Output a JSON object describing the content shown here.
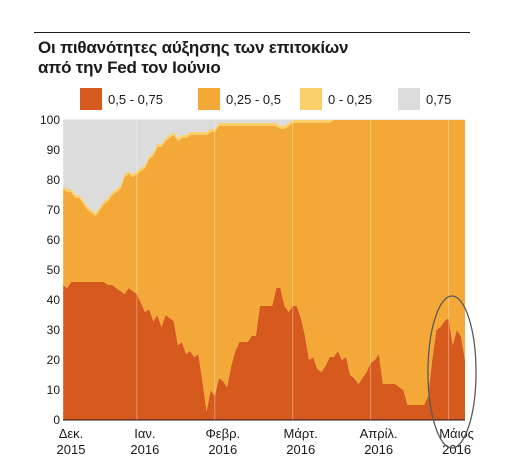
{
  "colors": {
    "s1": "#d65a1d",
    "s2": "#f4a838",
    "s3": "#fbcf6a",
    "s4": "#dcdcdc",
    "grid": "#d9d9d9",
    "text": "#1a1a1a"
  },
  "chart_data": {
    "type": "area",
    "stacked": true,
    "title": "Οι πιθανότητες αύξησης των επιτοκίων\nαπό την Fed τον Ιούνιο",
    "title_lines": [
      "Οι πιθανότητες αύξησης των επιτοκίων",
      "από την Fed τον Ιούνιο"
    ],
    "xlabel": "",
    "ylabel": "",
    "ylim": [
      0,
      100
    ],
    "yticks": [
      0,
      10,
      20,
      30,
      40,
      50,
      60,
      70,
      80,
      90,
      100
    ],
    "grid": true,
    "legend_position": "top",
    "x_ticks": [
      {
        "label": [
          "Δεκ.",
          "2015"
        ],
        "at": 0
      },
      {
        "label": [
          "Ιαν.",
          "2016"
        ],
        "at": 18
      },
      {
        "label": [
          "Φεβρ.",
          "2016"
        ],
        "at": 37
      },
      {
        "label": [
          "Μάρτ.",
          "2016"
        ],
        "at": 56
      },
      {
        "label": [
          "Απρίλ.",
          "2016"
        ],
        "at": 75
      },
      {
        "label": [
          "Μάιος",
          "2016"
        ],
        "at": 94
      }
    ],
    "series": [
      {
        "name": "0,5 - 0,75",
        "values": [
          45,
          44,
          46,
          46,
          46,
          46,
          46,
          46,
          46,
          46,
          46,
          45,
          45,
          44,
          43,
          42,
          44,
          43,
          42,
          39,
          36,
          37,
          33,
          35,
          31,
          35,
          34,
          33,
          25,
          26,
          22,
          23,
          21,
          22,
          13,
          3,
          10,
          8,
          14,
          13,
          11,
          18,
          23,
          26,
          26,
          26,
          28,
          28,
          38,
          38,
          38,
          38,
          44,
          44,
          38,
          36,
          38,
          38,
          34,
          28,
          20,
          21,
          17,
          16,
          18,
          21,
          21,
          23,
          20,
          21,
          15,
          14,
          12,
          14,
          16,
          19,
          20,
          22,
          12,
          12,
          12,
          12,
          11,
          10,
          5,
          5,
          5,
          5,
          5,
          8,
          20,
          30,
          31,
          33,
          34,
          25,
          30,
          28,
          20
        ]
      },
      {
        "name": "0,25 - 0,5",
        "values": [
          32,
          32,
          30,
          28,
          28,
          26,
          24,
          23,
          22,
          24,
          26,
          28,
          30,
          32,
          34,
          39,
          38,
          38,
          40,
          44,
          48,
          50,
          55,
          56,
          60,
          58,
          60,
          62,
          68,
          68,
          72,
          72,
          74,
          73,
          82,
          92,
          86,
          88,
          84,
          85,
          87,
          80,
          75,
          72,
          72,
          72,
          70,
          70,
          60,
          60,
          60,
          60,
          54,
          53,
          59,
          62,
          61,
          61,
          65,
          71,
          79,
          78,
          82,
          83,
          81,
          78,
          79,
          77,
          80,
          79,
          85,
          86,
          88,
          86,
          84,
          81,
          80,
          78,
          88,
          88,
          88,
          88,
          89,
          90,
          95,
          95,
          95,
          95,
          95,
          92,
          80,
          70,
          69,
          67,
          66,
          75,
          70,
          72,
          80
        ]
      },
      {
        "name": "0 - 0,25",
        "values": [
          1,
          1,
          1,
          1,
          1,
          1,
          1,
          1,
          1,
          1,
          1,
          1,
          1,
          1,
          1,
          1,
          1,
          1,
          1,
          1,
          1,
          1,
          1,
          1,
          1,
          1,
          1,
          1,
          1,
          1,
          1,
          1,
          1,
          1,
          1,
          1,
          1,
          1,
          1,
          1,
          1,
          1,
          1,
          1,
          1,
          1,
          1,
          1,
          1,
          1,
          1,
          1,
          1,
          1,
          1,
          1,
          1,
          1,
          1,
          1,
          1,
          1,
          1,
          1,
          1,
          1,
          1,
          1,
          1,
          1,
          1,
          1,
          1,
          1,
          1,
          1,
          1,
          1,
          1,
          1,
          1,
          1,
          1,
          1,
          0,
          0,
          0,
          0,
          0,
          0,
          0,
          0,
          0,
          0,
          0,
          0,
          0,
          0,
          0
        ]
      },
      {
        "name": "0,75",
        "values": [
          22,
          23,
          23,
          25,
          25,
          27,
          29,
          30,
          31,
          29,
          27,
          26,
          24,
          23,
          22,
          18,
          17,
          18,
          17,
          16,
          15,
          12,
          11,
          8,
          8,
          6,
          5,
          4,
          6,
          5,
          5,
          4,
          4,
          4,
          4,
          4,
          3,
          3,
          1,
          1,
          1,
          1,
          1,
          1,
          1,
          1,
          1,
          1,
          1,
          1,
          1,
          1,
          1,
          2,
          2,
          1,
          0,
          0,
          0,
          0,
          0,
          0,
          0,
          0,
          0,
          0,
          0,
          0,
          0,
          0,
          0,
          0,
          0,
          0,
          0,
          0,
          0,
          0,
          0,
          0,
          0,
          0,
          0,
          0,
          0,
          0,
          0,
          0,
          0,
          0,
          0,
          0,
          0,
          0,
          0,
          0,
          0,
          0,
          0
        ]
      }
    ]
  }
}
